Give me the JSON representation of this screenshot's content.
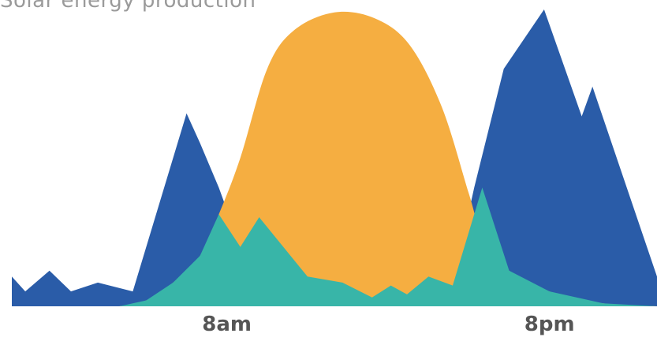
{
  "chart_data": {
    "type": "area",
    "title": "Solar energy production",
    "xlabel": "",
    "ylabel": "",
    "x_tick_labels": [
      "8am",
      "8pm"
    ],
    "x_tick_hours": [
      8,
      20
    ],
    "x_range_hours": [
      0,
      24
    ],
    "y_range": [
      0,
      1
    ],
    "grid": false,
    "legend": "none",
    "series": [
      {
        "key": "consumption",
        "color": "#2a5ca8",
        "points": [
          [
            0,
            0.1
          ],
          [
            0.5,
            0.05
          ],
          [
            1.4,
            0.12
          ],
          [
            2.2,
            0.05
          ],
          [
            3.2,
            0.08
          ],
          [
            4.5,
            0.05
          ],
          [
            6.5,
            0.65
          ],
          [
            7.0,
            0.55
          ],
          [
            7.7,
            0.4
          ],
          [
            8.5,
            0.2
          ],
          [
            9.2,
            0.3
          ],
          [
            11.0,
            0.1
          ],
          [
            12.3,
            0.08
          ],
          [
            13.4,
            0.03
          ],
          [
            14.1,
            0.07
          ],
          [
            14.7,
            0.04
          ],
          [
            15.5,
            0.1
          ],
          [
            16.4,
            0.07
          ],
          [
            17.2,
            0.4
          ],
          [
            18.3,
            0.8
          ],
          [
            19.8,
            1.0
          ],
          [
            21.2,
            0.64
          ],
          [
            21.6,
            0.74
          ],
          [
            24,
            0.1
          ]
        ]
      },
      {
        "key": "solar_production",
        "color": "#f5ae41",
        "points": [
          [
            4.0,
            0.0
          ],
          [
            5.0,
            0.02
          ],
          [
            6.0,
            0.08
          ],
          [
            7.0,
            0.17
          ],
          [
            7.7,
            0.31
          ],
          [
            8.5,
            0.5
          ],
          [
            9.5,
            0.8
          ],
          [
            10.5,
            0.93
          ],
          [
            12.0,
            0.99
          ],
          [
            13.5,
            0.97
          ],
          [
            14.8,
            0.88
          ],
          [
            16.0,
            0.67
          ],
          [
            17.0,
            0.38
          ],
          [
            17.5,
            0.24
          ],
          [
            18.5,
            0.12
          ],
          [
            20.0,
            0.05
          ],
          [
            22.0,
            0.01
          ],
          [
            24,
            0.0
          ]
        ]
      },
      {
        "key": "self_consumed",
        "color": "#38b5a8",
        "points": [
          [
            0,
            0.0
          ],
          [
            4.0,
            0.0
          ],
          [
            5.0,
            0.02
          ],
          [
            6.0,
            0.08
          ],
          [
            7.0,
            0.17
          ],
          [
            7.7,
            0.31
          ],
          [
            8.5,
            0.2
          ],
          [
            9.2,
            0.3
          ],
          [
            11.0,
            0.1
          ],
          [
            12.3,
            0.08
          ],
          [
            13.4,
            0.03
          ],
          [
            14.1,
            0.07
          ],
          [
            14.7,
            0.04
          ],
          [
            15.5,
            0.1
          ],
          [
            16.4,
            0.07
          ],
          [
            17.5,
            0.4
          ],
          [
            18.5,
            0.12
          ],
          [
            20.0,
            0.05
          ],
          [
            22.0,
            0.01
          ],
          [
            24,
            0.0
          ]
        ]
      }
    ]
  }
}
